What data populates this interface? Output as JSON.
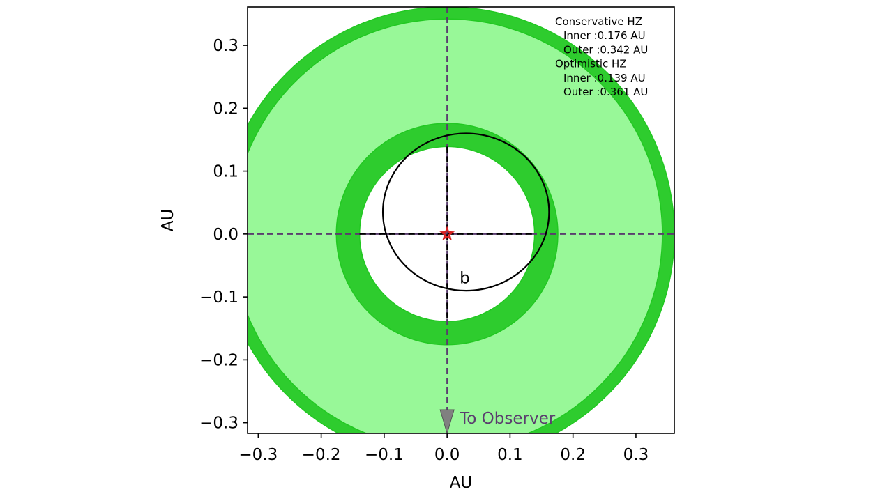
{
  "chart_data": {
    "type": "scatter",
    "xlabel": "AU",
    "ylabel": "AU",
    "xlim": [
      -0.317,
      0.361
    ],
    "ylim": [
      -0.317,
      0.361
    ],
    "x_ticks": [
      -0.3,
      -0.2,
      -0.1,
      0.0,
      0.1,
      0.2,
      0.3
    ],
    "y_ticks": [
      -0.3,
      -0.2,
      -0.1,
      0.0,
      0.1,
      0.2,
      0.3
    ],
    "x_tick_labels": [
      "−0.3",
      "−0.2",
      "−0.1",
      "0.0",
      "0.1",
      "0.2",
      "0.3"
    ],
    "y_tick_labels": [
      "−0.3",
      "−0.2",
      "−0.1",
      "0.0",
      "0.1",
      "0.2",
      "0.3"
    ],
    "habitable_zones": {
      "conservative": {
        "inner": 0.176,
        "outer": 0.342,
        "fill": "#98f898",
        "edge": "#22c822"
      },
      "optimistic": {
        "inner": 0.139,
        "outer": 0.361,
        "fill": "#2ecc2e",
        "edge": "#22c822"
      }
    },
    "star": {
      "x": 0.0,
      "y": 0.0,
      "color": "#d62020"
    },
    "orbit": {
      "name": "b",
      "center_x": 0.03,
      "center_y": 0.035,
      "semi_major": 0.125,
      "semi_minor": 0.132,
      "color": "#000000",
      "label_x": 0.028,
      "label_y": -0.078
    },
    "legend": [
      "Conservative HZ",
      "Inner :0.176 AU",
      "Outer :0.342 AU",
      "Optimistic HZ",
      "Inner :0.139 AU",
      "Outer :0.361 AU"
    ],
    "observer": {
      "text": "To Observer",
      "color": "#5a3d6e",
      "arrow_color": "#808080"
    },
    "crosshair_color": "#5a3d6e",
    "grid": false
  }
}
